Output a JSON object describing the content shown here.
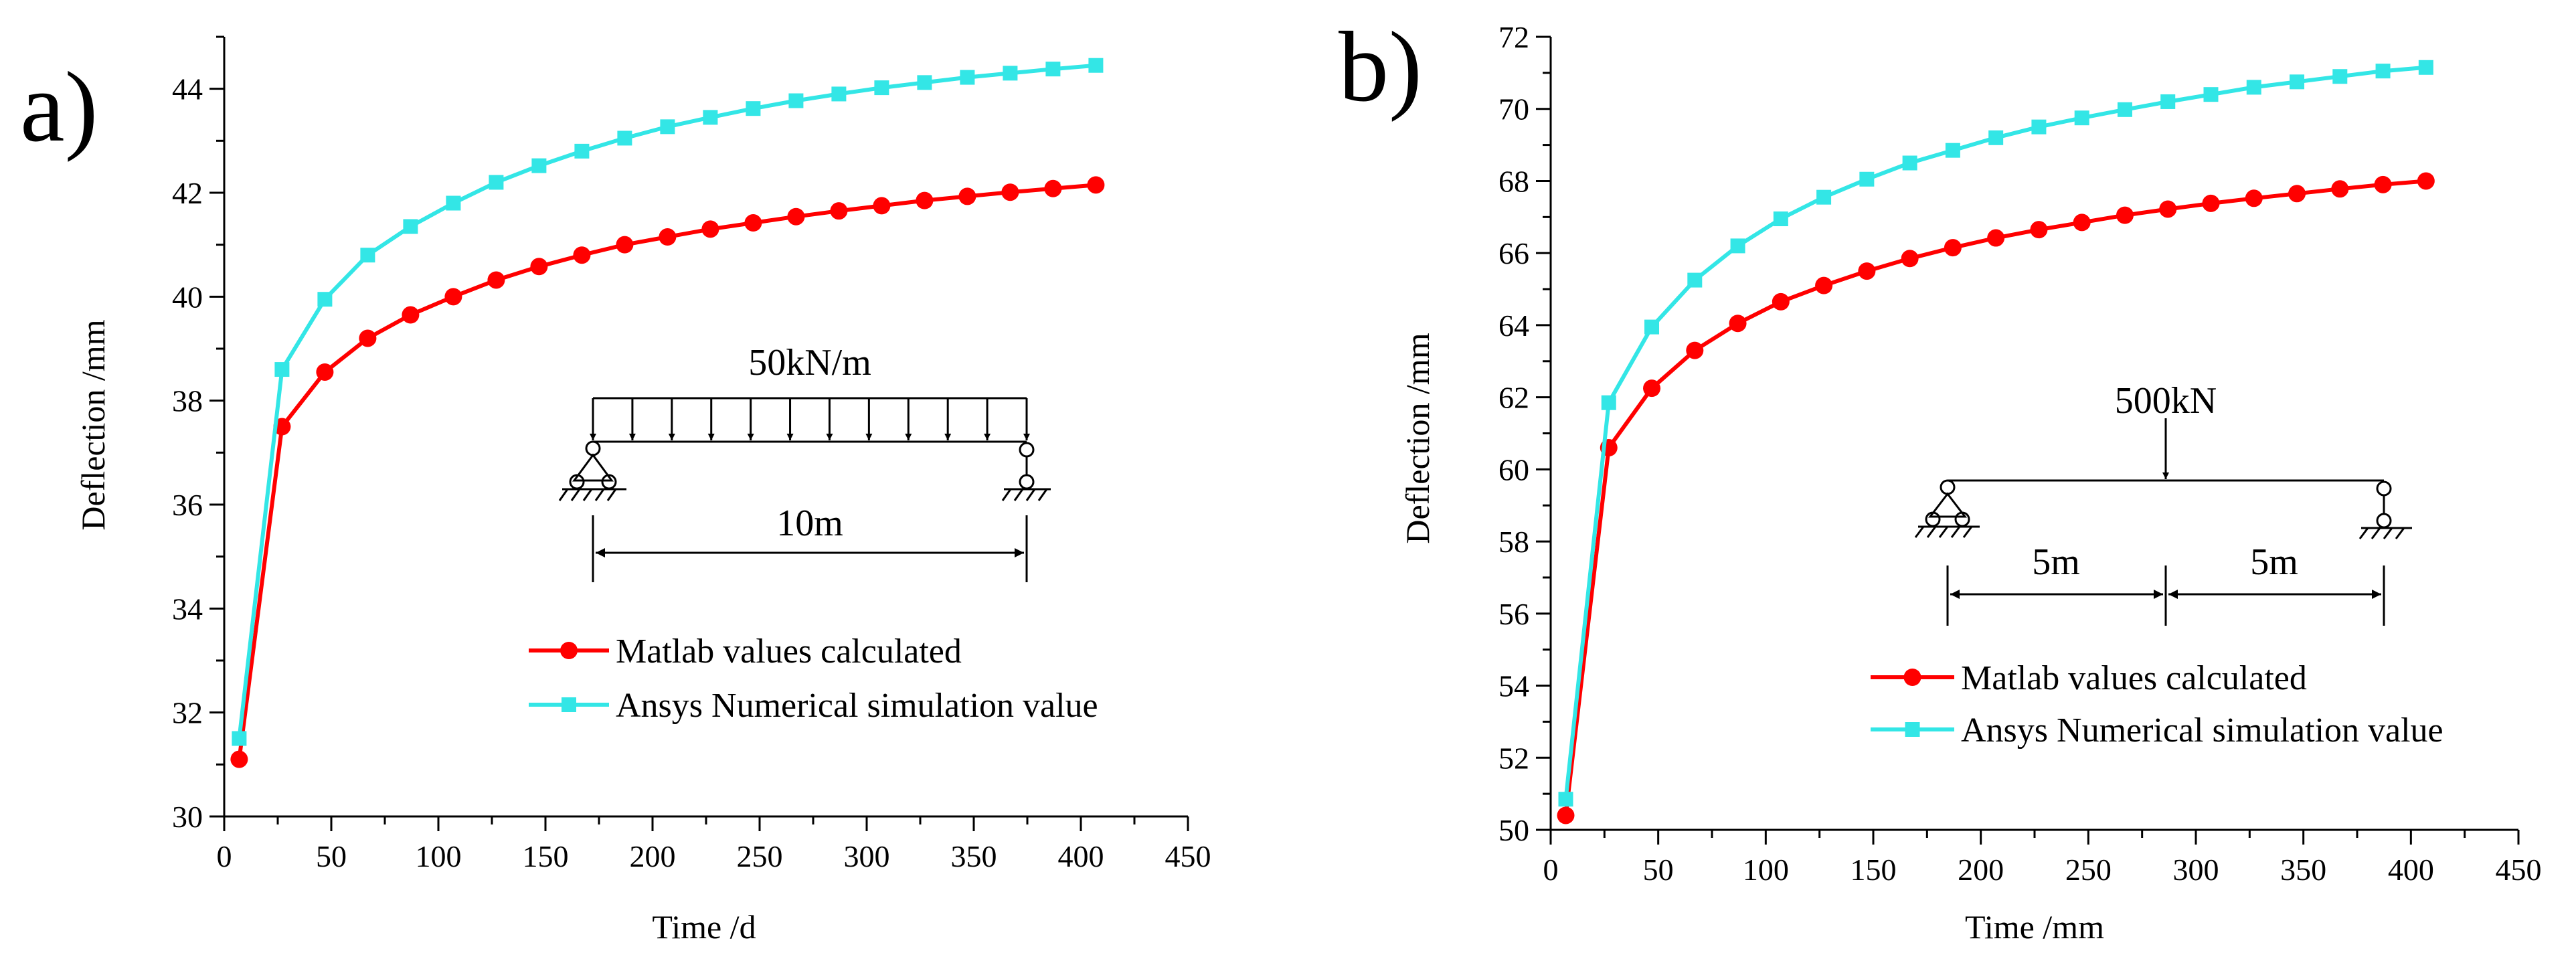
{
  "chart_data": [
    {
      "panel_label": "a)",
      "type": "line",
      "xlabel": "Time /d",
      "ylabel": "Deflection /mm",
      "xlim": [
        0,
        450
      ],
      "ylim": [
        30,
        45
      ],
      "xticks": [
        "0",
        "50",
        "100",
        "150",
        "200",
        "250",
        "300",
        "350",
        "400",
        "450"
      ],
      "yticks": [
        "30",
        "32",
        "34",
        "36",
        "38",
        "40",
        "42",
        "44"
      ],
      "grid": false,
      "legend_position": "lower-right",
      "x": [
        7,
        27,
        47,
        67,
        87,
        107,
        127,
        147,
        167,
        187,
        207,
        227,
        247,
        267,
        287,
        307,
        327,
        347,
        367,
        387,
        407
      ],
      "series": [
        {
          "name": "Matlab values calculated",
          "color": "#ff0000",
          "marker": "circle",
          "values": [
            31.1,
            37.5,
            38.55,
            39.2,
            39.65,
            40.0,
            40.32,
            40.58,
            40.8,
            41.0,
            41.15,
            41.3,
            41.42,
            41.54,
            41.65,
            41.75,
            41.85,
            41.93,
            42.01,
            42.08,
            42.15
          ]
        },
        {
          "name": "Ansys Numerical simulation value",
          "color": "#33e6e6",
          "marker": "square",
          "values": [
            31.5,
            38.6,
            39.95,
            40.8,
            41.35,
            41.8,
            42.2,
            42.52,
            42.8,
            43.05,
            43.27,
            43.45,
            43.62,
            43.77,
            43.9,
            44.02,
            44.12,
            44.22,
            44.3,
            44.38,
            44.45
          ]
        }
      ],
      "inset": {
        "load_label": "50kN/m",
        "span_label": "10m"
      }
    },
    {
      "panel_label": "b)",
      "type": "line",
      "xlabel": "Time /mm",
      "ylabel": "Deflection /mm",
      "xlim": [
        0,
        450
      ],
      "ylim": [
        50,
        72
      ],
      "xticks": [
        "0",
        "50",
        "100",
        "150",
        "200",
        "250",
        "300",
        "350",
        "400",
        "450"
      ],
      "yticks": [
        "50",
        "52",
        "54",
        "56",
        "58",
        "60",
        "62",
        "64",
        "66",
        "68",
        "70",
        "72"
      ],
      "grid": false,
      "legend_position": "lower-right",
      "x": [
        7,
        27,
        47,
        67,
        87,
        107,
        127,
        147,
        167,
        187,
        207,
        227,
        247,
        267,
        287,
        307,
        327,
        347,
        367,
        387,
        407
      ],
      "series": [
        {
          "name": "Matlab values calculated",
          "color": "#ff0000",
          "marker": "circle",
          "values": [
            50.4,
            60.6,
            62.25,
            63.3,
            64.05,
            64.65,
            65.1,
            65.5,
            65.85,
            66.15,
            66.42,
            66.65,
            66.85,
            67.05,
            67.22,
            67.38,
            67.52,
            67.65,
            67.78,
            67.9,
            68.0
          ]
        },
        {
          "name": "Ansys Numerical simulation value",
          "color": "#33e6e6",
          "marker": "square",
          "values": [
            50.85,
            61.85,
            63.95,
            65.25,
            66.2,
            66.95,
            67.55,
            68.05,
            68.5,
            68.85,
            69.2,
            69.5,
            69.75,
            69.98,
            70.2,
            70.4,
            70.6,
            70.75,
            70.9,
            71.05,
            71.15
          ]
        }
      ],
      "inset": {
        "load_label": "500kN",
        "span_left_label": "5m",
        "span_right_label": "5m"
      }
    }
  ]
}
